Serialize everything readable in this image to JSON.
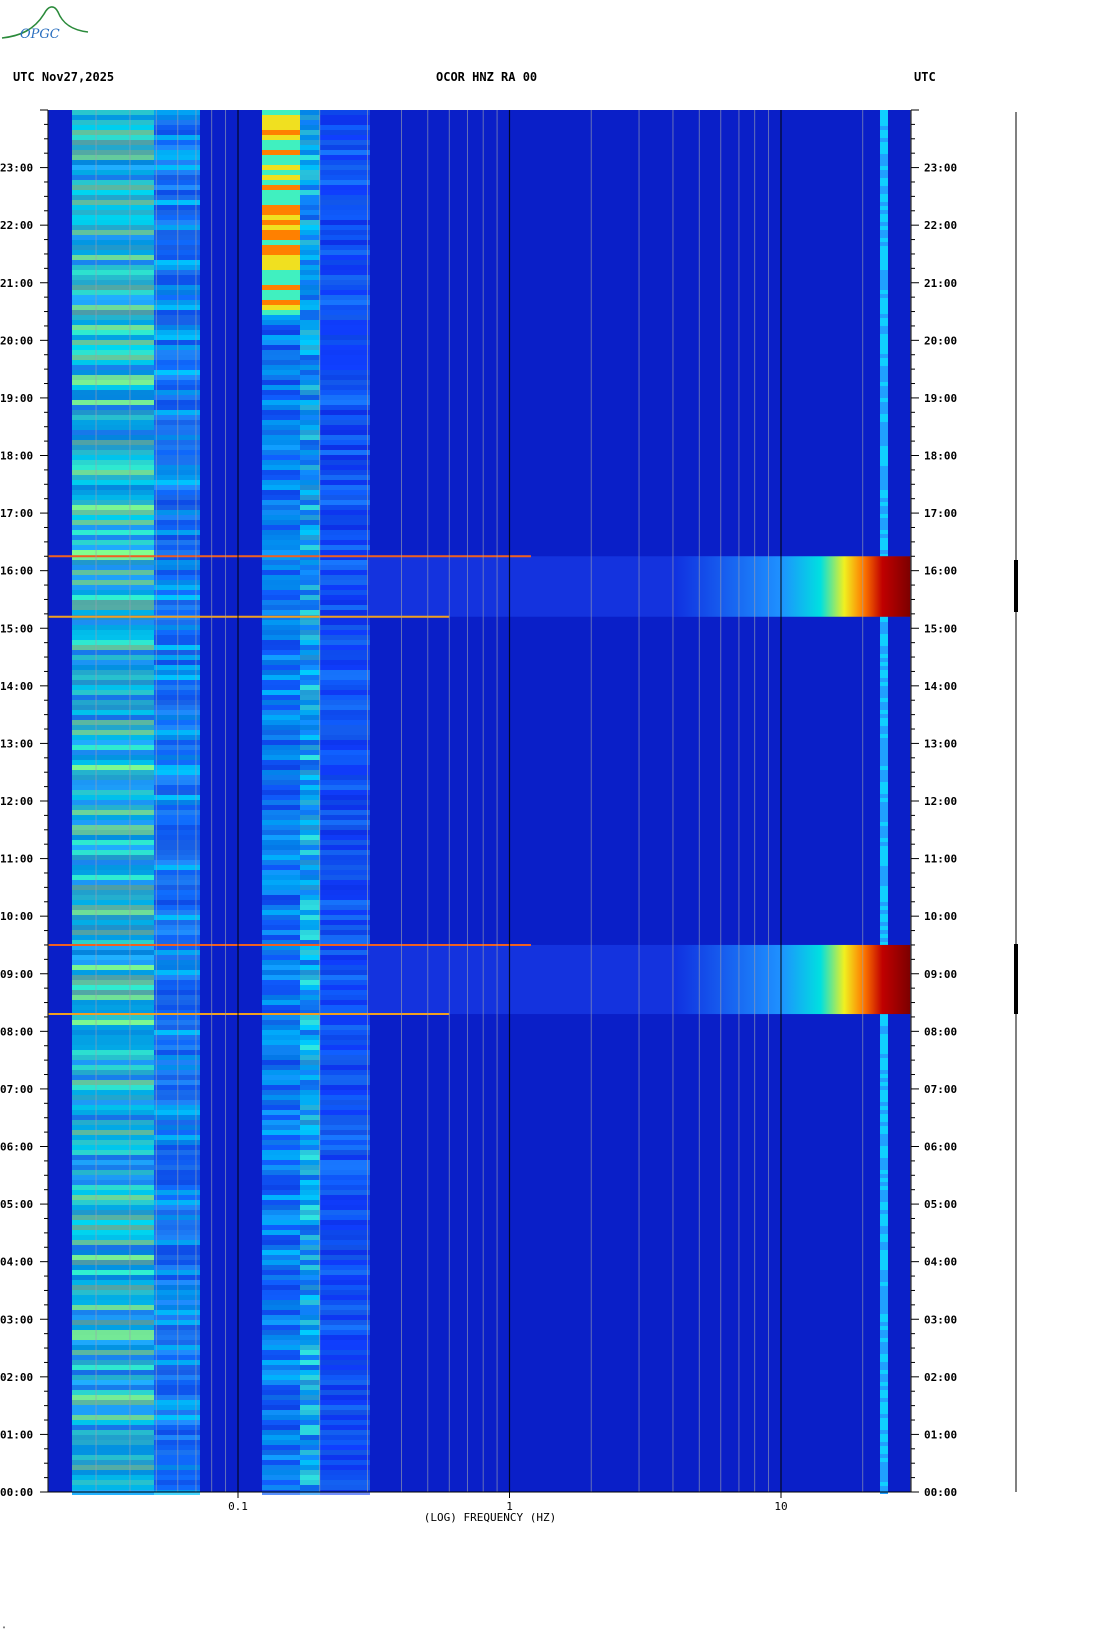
{
  "header": {
    "left": "UTC  Nov27,2025",
    "center": "OCOR HNZ RA 00",
    "right": "UTC"
  },
  "logo": {
    "text": "OPGC"
  },
  "chart_data": {
    "type": "heatmap",
    "title": "OCOR HNZ RA 00",
    "xlabel": "(LOG) FREQUENCY (HZ)",
    "ylabel": "",
    "x_scale": "log",
    "xlim": [
      0.02,
      30
    ],
    "ylim_hours": [
      0,
      24
    ],
    "x_ticks": [
      {
        "value": 0.1,
        "label": "0.1"
      },
      {
        "value": 1,
        "label": "1"
      },
      {
        "value": 10,
        "label": "10"
      }
    ],
    "y_ticks": [
      {
        "hour": 0,
        "label": "00:00"
      },
      {
        "hour": 1,
        "label": "01:00"
      },
      {
        "hour": 2,
        "label": "02:00"
      },
      {
        "hour": 3,
        "label": "03:00"
      },
      {
        "hour": 4,
        "label": "04:00"
      },
      {
        "hour": 5,
        "label": "05:00"
      },
      {
        "hour": 6,
        "label": "06:00"
      },
      {
        "hour": 7,
        "label": "07:00"
      },
      {
        "hour": 8,
        "label": "08:00"
      },
      {
        "hour": 9,
        "label": "09:00"
      },
      {
        "hour": 10,
        "label": "10:00"
      },
      {
        "hour": 11,
        "label": "11:00"
      },
      {
        "hour": 12,
        "label": "12:00"
      },
      {
        "hour": 13,
        "label": "13:00"
      },
      {
        "hour": 14,
        "label": "14:00"
      },
      {
        "hour": 15,
        "label": "15:00"
      },
      {
        "hour": 16,
        "label": "16:00"
      },
      {
        "hour": 17,
        "label": "17:00"
      },
      {
        "hour": 18,
        "label": "18:00"
      },
      {
        "hour": 19,
        "label": "19:00"
      },
      {
        "hour": 20,
        "label": "20:00"
      },
      {
        "hour": 21,
        "label": "21:00"
      },
      {
        "hour": 22,
        "label": "22:00"
      },
      {
        "hour": 23,
        "label": "23:00"
      }
    ],
    "events": [
      {
        "start_hour": 15.2,
        "end_hour": 16.25,
        "min_freq": 5,
        "peak_freq": 25,
        "level": 1.0
      },
      {
        "start_hour": 8.3,
        "end_hour": 9.5,
        "min_freq": 5,
        "peak_freq": 25,
        "level": 1.0
      }
    ],
    "microseism_band": {
      "freq": [
        0.11,
        0.19
      ],
      "peak_hours": [
        20.5,
        24
      ]
    },
    "colors": {
      "background": "#0a1fc8",
      "low": "#0000a0",
      "high": "#8b0000"
    }
  }
}
